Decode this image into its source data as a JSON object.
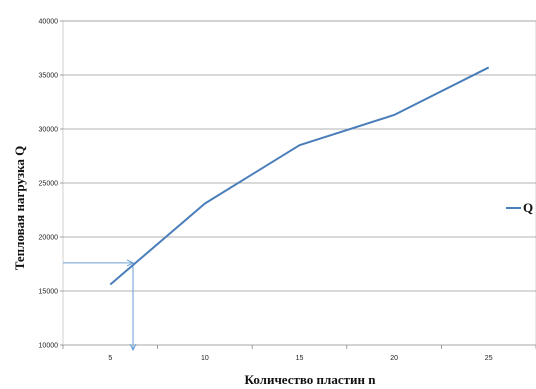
{
  "chart_data": {
    "type": "line",
    "x": [
      5,
      10,
      15,
      20,
      25
    ],
    "series": [
      {
        "name": "Q",
        "values": [
          15600,
          23100,
          28500,
          31300,
          35700
        ],
        "color": "#4a7ebb"
      }
    ],
    "x_ticks": [
      "5",
      "10",
      "15",
      "20",
      "25"
    ],
    "y_ticks": [
      "10000",
      "15000",
      "20000",
      "25000",
      "30000",
      "35000",
      "40000"
    ],
    "xlim": [
      2.5,
      27.5
    ],
    "ylim": [
      10000,
      40000
    ],
    "xlabel": "Количество пластин    n",
    "ylabel": "Тепловая нагрузка  Q",
    "grid": "horizontal",
    "legend_position": "right",
    "annotation": {
      "from_y": 17600,
      "to_x": 6.2,
      "color": "#6a9fd4"
    }
  }
}
